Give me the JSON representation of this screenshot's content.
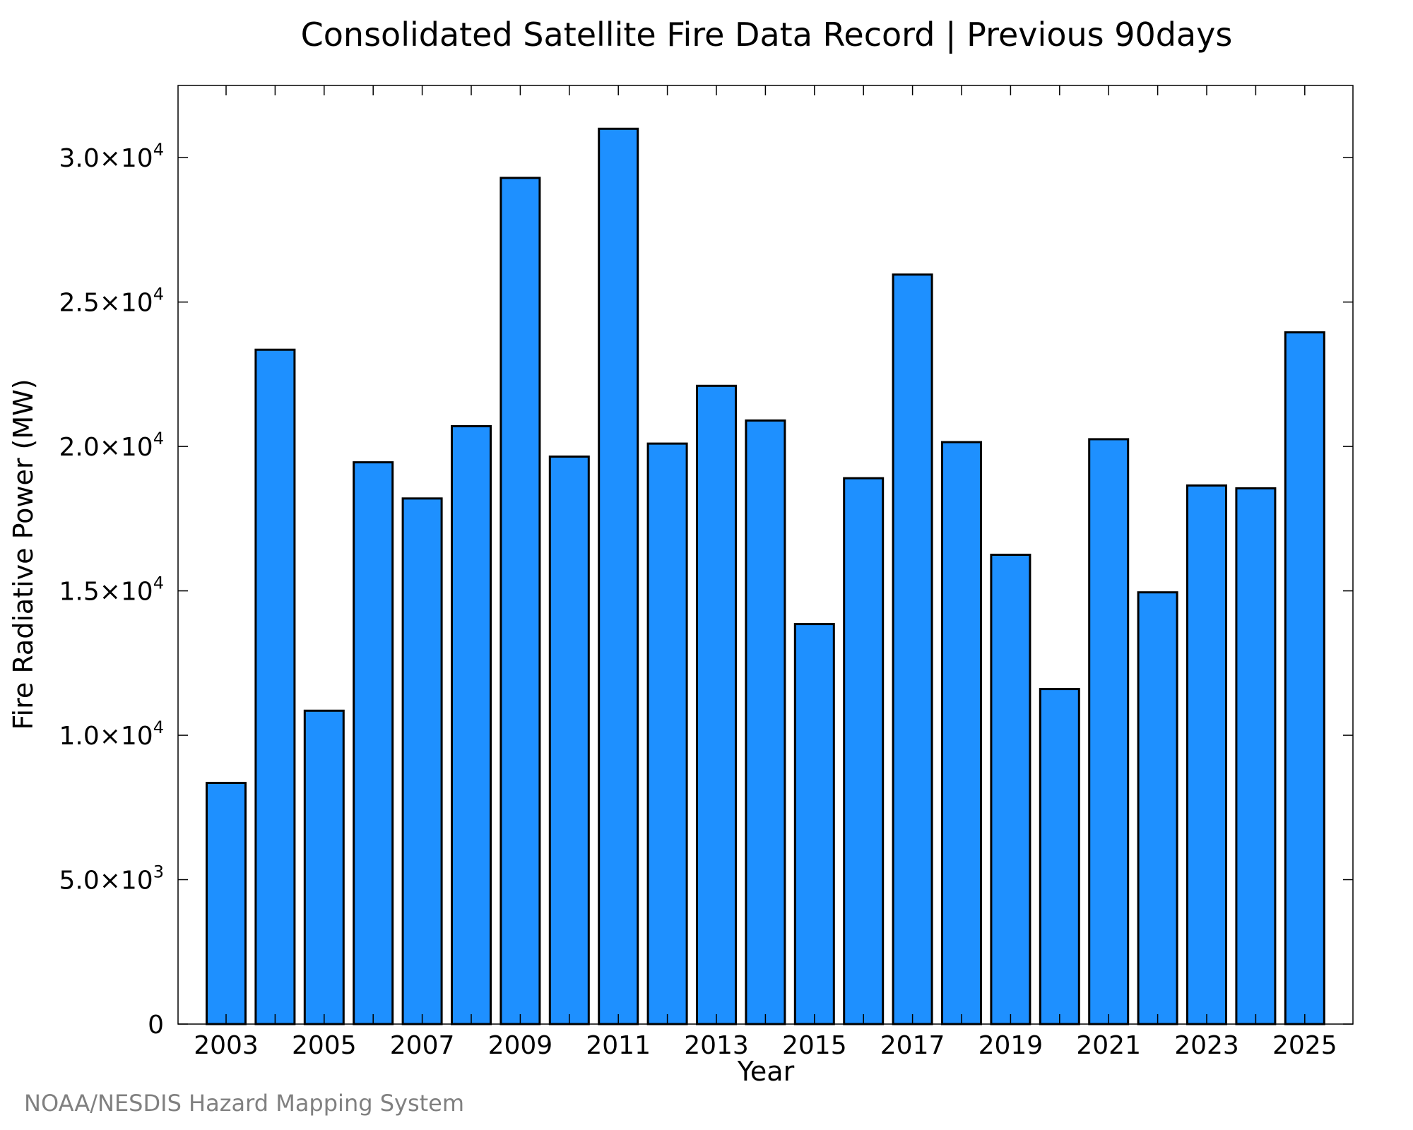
{
  "chart_data": {
    "type": "bar",
    "title": "Consolidated Satellite Fire Data Record | Previous 90days",
    "xlabel": "Year",
    "ylabel": "Fire Radiative Power (MW)",
    "categories": [
      "2003",
      "2004",
      "2005",
      "2006",
      "2007",
      "2008",
      "2009",
      "2010",
      "2011",
      "2012",
      "2013",
      "2014",
      "2015",
      "2016",
      "2017",
      "2018",
      "2019",
      "2020",
      "2021",
      "2022",
      "2023",
      "2024",
      "2025"
    ],
    "values": [
      8350,
      23350,
      10850,
      19450,
      18200,
      20700,
      29300,
      19650,
      31000,
      20100,
      22100,
      20900,
      13850,
      18900,
      25950,
      20150,
      16250,
      11600,
      20250,
      14950,
      18650,
      18550,
      23950
    ],
    "ylim": [
      0,
      32500
    ],
    "y_ticks": [
      {
        "value": 0,
        "mantissa": "0",
        "exp": ""
      },
      {
        "value": 5000,
        "mantissa": "5.0×10",
        "exp": "3"
      },
      {
        "value": 10000,
        "mantissa": "1.0×10",
        "exp": "4"
      },
      {
        "value": 15000,
        "mantissa": "1.5×10",
        "exp": "4"
      },
      {
        "value": 20000,
        "mantissa": "2.0×10",
        "exp": "4"
      },
      {
        "value": 25000,
        "mantissa": "2.5×10",
        "exp": "4"
      },
      {
        "value": 30000,
        "mantissa": "3.0×10",
        "exp": "4"
      }
    ],
    "x_tick_labels": [
      "2003",
      "2005",
      "2007",
      "2009",
      "2011",
      "2013",
      "2015",
      "2017",
      "2019",
      "2021",
      "2023",
      "2025"
    ],
    "bar_color": "#1e90ff",
    "grid": false,
    "legend": "none"
  },
  "credit": "NOAA/NESDIS Hazard Mapping System"
}
